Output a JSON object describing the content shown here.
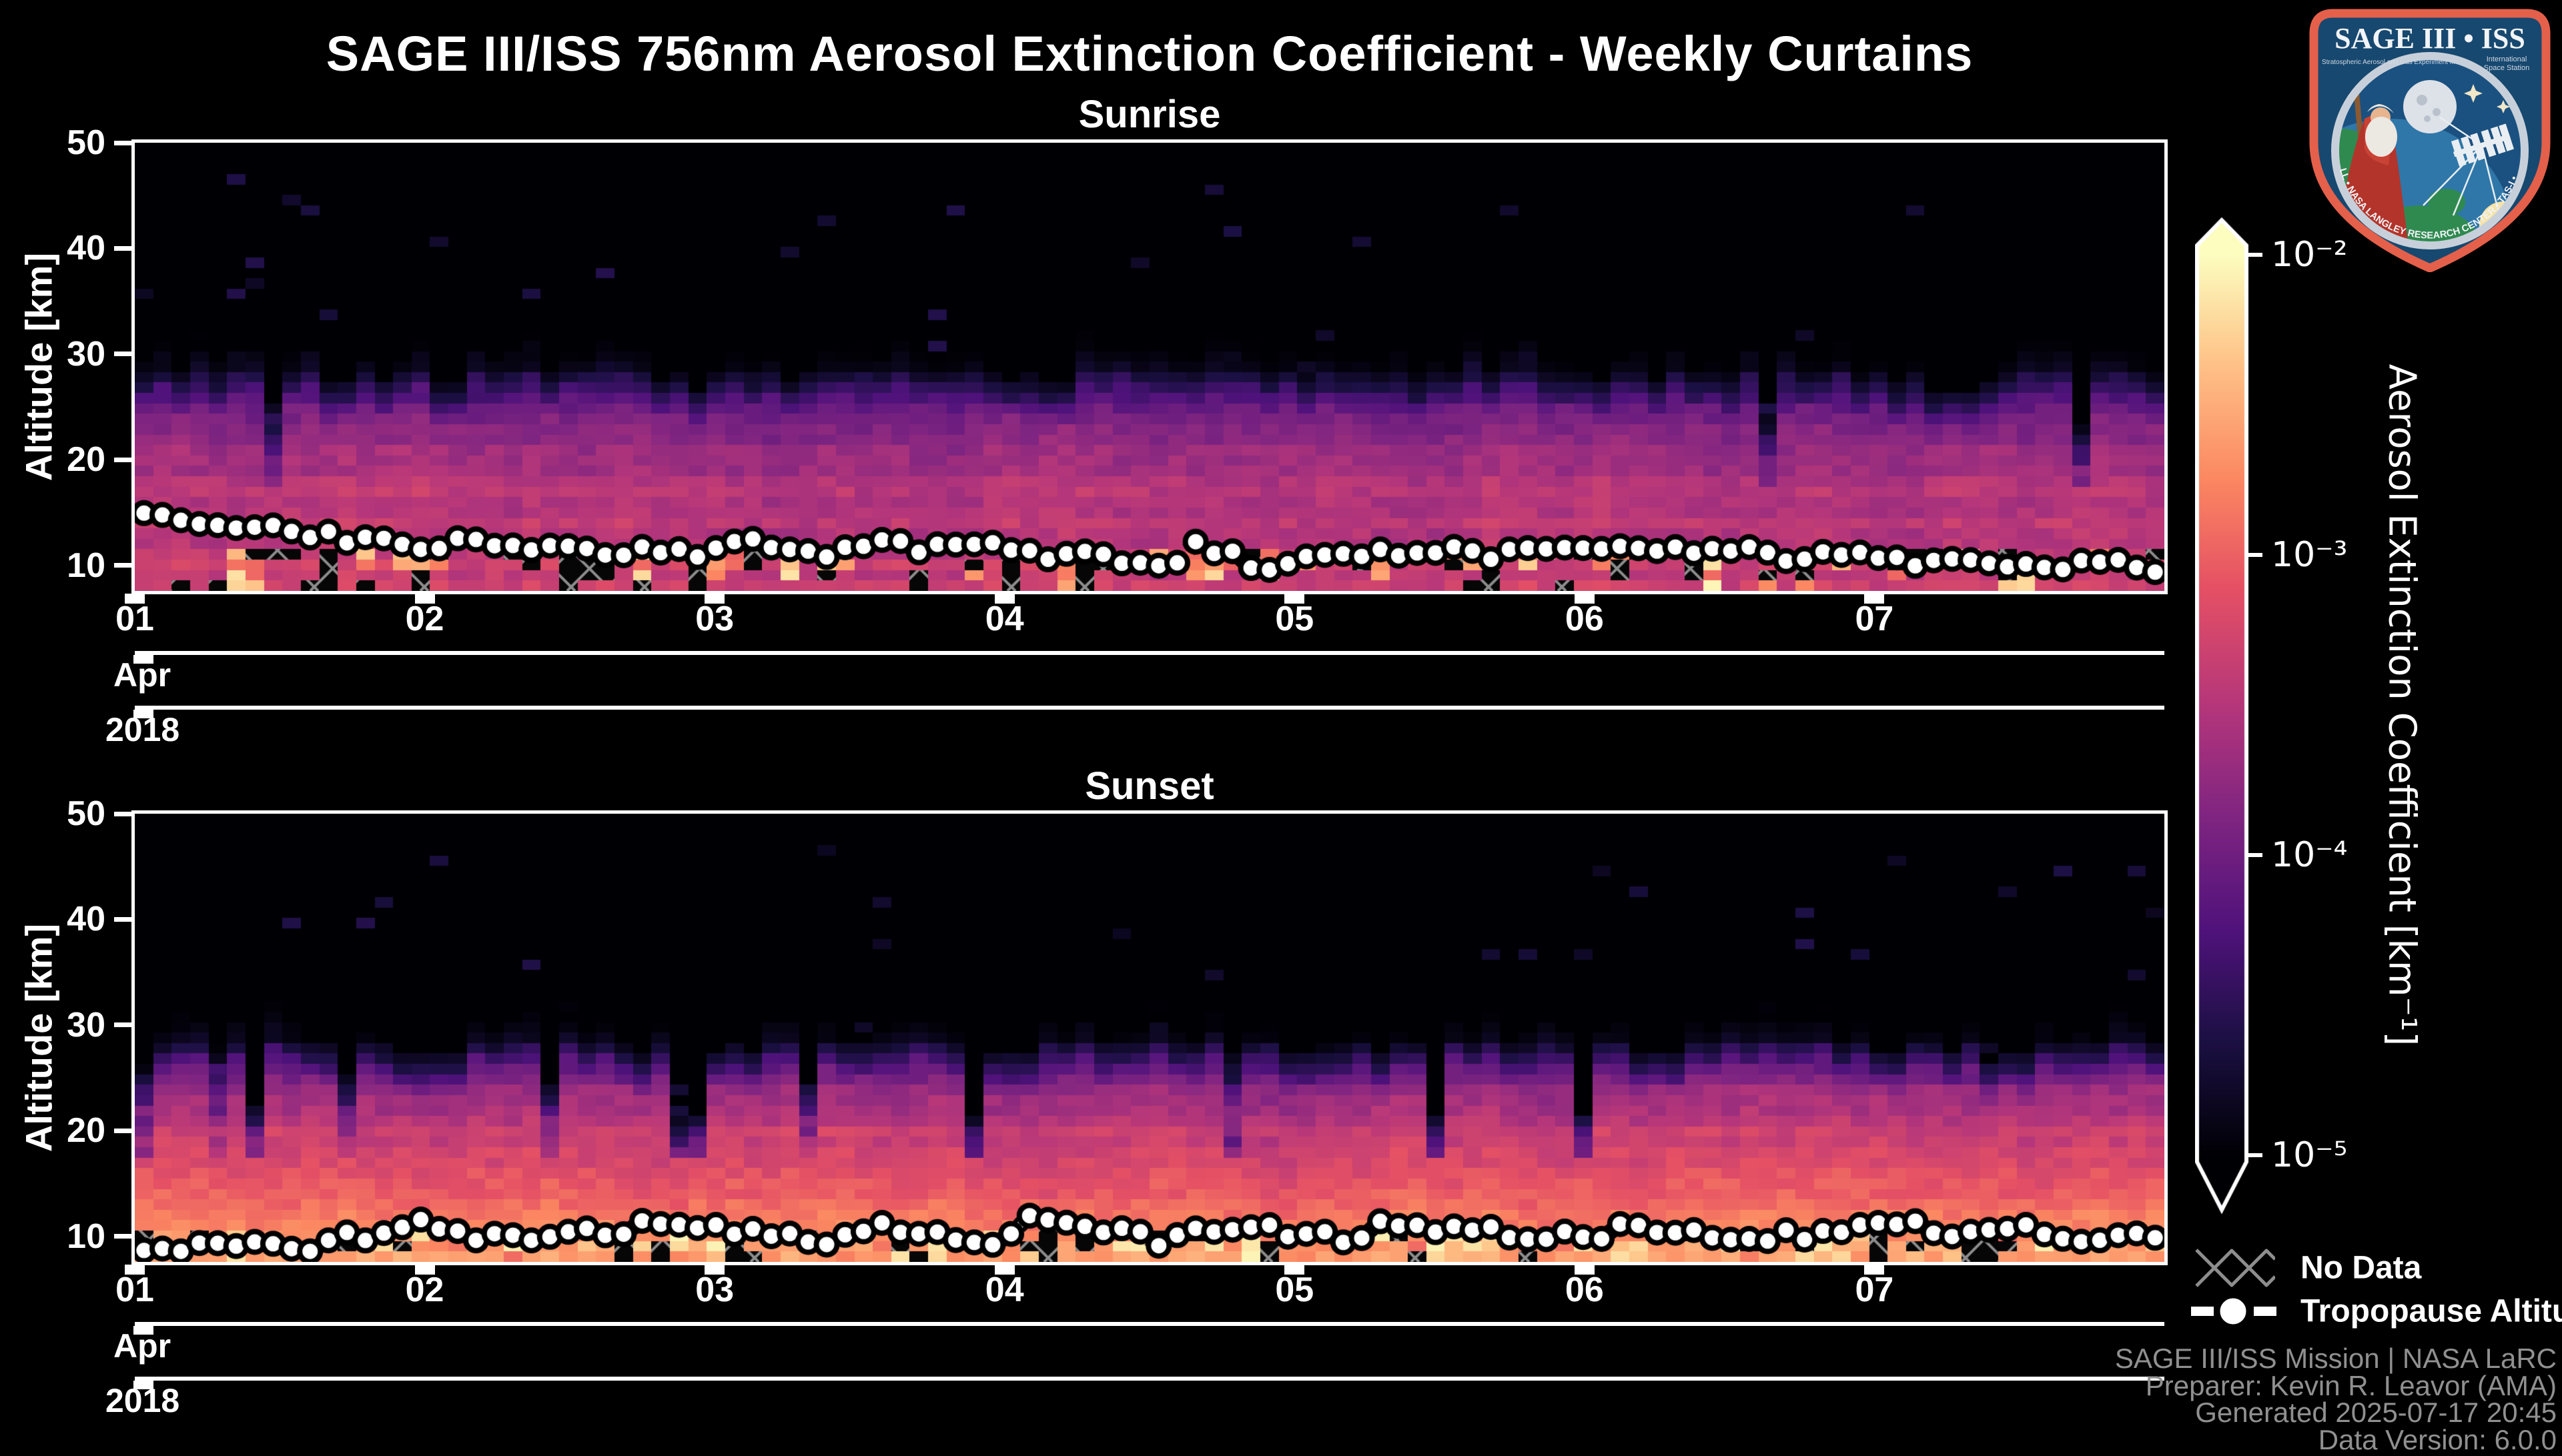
{
  "header": {
    "title": "SAGE III/ISS 756nm Aerosol Extinction Coefficient - Weekly Curtains"
  },
  "y_axis": {
    "label": "Altitude [km]",
    "ticks": [
      50,
      40,
      30,
      20,
      10
    ],
    "range_km": [
      7.6,
      50
    ]
  },
  "x_axis": {
    "tick_labels": [
      "01",
      "02",
      "03",
      "04",
      "05",
      "06",
      "07"
    ],
    "month_label": "Apr",
    "year_label": "2018"
  },
  "colorbar": {
    "label": "Aerosol Extinction Coefficient [km⁻¹]",
    "scale": "log",
    "colormap": "magma",
    "ticks": [
      {
        "label": "10⁻²",
        "value": 0.01
      },
      {
        "label": "10⁻³",
        "value": 0.001
      },
      {
        "label": "10⁻⁴",
        "value": 0.0001
      },
      {
        "label": "10⁻⁵",
        "value": 1e-05
      }
    ]
  },
  "legend": {
    "items": [
      {
        "symbol": "no-data-hatch",
        "label": "No Data"
      },
      {
        "symbol": "tropopause-marker",
        "label": "Tropopause Altitude"
      }
    ]
  },
  "footer": {
    "lines": [
      "SAGE III/ISS Mission | NASA LaRC",
      "Preparer: Kevin R. Leavor (AMA)",
      "Generated 2025-07-17 20:45",
      "Data Version: 6.0.0"
    ]
  },
  "logo": {
    "title": "SAGE III • ISS",
    "subtitle_left": "Stratospheric Aerosol and Gas Experiment III",
    "subtitle_right_line1": "International",
    "subtitle_right_line2": "Space Station",
    "ring_text": "BALL • NASA LANGLEY RESEARCH CENTER • TAS-I • ESA",
    "colors": {
      "border": "#e4604a",
      "field": "#17486f",
      "ring": "#c7d0da"
    }
  },
  "chart_data": [
    {
      "type": "heatmap",
      "name": "Sunrise",
      "x_unit": "weeks of April 2018 (ticks 01-07, one curtain column per profile)",
      "n_profile_columns": 110,
      "altitude_range_km": [
        7.6,
        50
      ],
      "value_quantity": "log10 aerosol extinction coefficient [1/km]",
      "value_range": [
        1e-05,
        0.01
      ],
      "mean_profile_log10_vs_km": [
        [
          7.6,
          -3.35
        ],
        [
          10,
          -3.35
        ],
        [
          12,
          -3.5
        ],
        [
          14,
          -3.45
        ],
        [
          16,
          -3.5
        ],
        [
          18,
          -3.55
        ],
        [
          20,
          -3.62
        ],
        [
          22,
          -3.78
        ],
        [
          24,
          -3.98
        ],
        [
          26,
          -4.22
        ],
        [
          27.5,
          -4.48
        ],
        [
          29,
          -4.75
        ],
        [
          30.5,
          -4.95
        ],
        [
          32,
          -5.0
        ],
        [
          50,
          -5.0
        ]
      ],
      "tropopause_km_weekly": [
        15.3,
        11.6,
        11.2,
        11.8,
        10.6,
        11.0,
        11.6,
        10.4,
        10.2
      ],
      "render": {
        "top_boundary_km_base": 29.6,
        "top_boundary_jitter_km": 2.4,
        "bright_zone_top_km": 12.0,
        "p_no_data": 0.27,
        "p_bright": 0.22,
        "p_dark_streak": 0.02,
        "seed": 11
      }
    },
    {
      "type": "heatmap",
      "name": "Sunset",
      "x_unit": "weeks of April 2018 (ticks 01-07, one curtain column per profile)",
      "n_profile_columns": 110,
      "altitude_range_km": [
        7.6,
        50
      ],
      "value_quantity": "log10 aerosol extinction coefficient [1/km]",
      "value_range": [
        1e-05,
        0.01
      ],
      "mean_profile_log10_vs_km": [
        [
          7.6,
          -2.5
        ],
        [
          10,
          -2.62
        ],
        [
          12,
          -2.82
        ],
        [
          14,
          -2.97
        ],
        [
          16,
          -3.1
        ],
        [
          18,
          -3.22
        ],
        [
          20,
          -3.36
        ],
        [
          22,
          -3.52
        ],
        [
          24,
          -3.72
        ],
        [
          26,
          -3.98
        ],
        [
          27.5,
          -4.35
        ],
        [
          29,
          -4.72
        ],
        [
          30.5,
          -4.95
        ],
        [
          32,
          -5.0
        ],
        [
          50,
          -5.0
        ]
      ],
      "tropopause_km_weekly": [
        9.4,
        10.0,
        10.6,
        9.6,
        10.0,
        10.6,
        9.9,
        10.5,
        10.2
      ],
      "render": {
        "top_boundary_km_base": 29.3,
        "top_boundary_jitter_km": 2.2,
        "bright_zone_top_km": 10.8,
        "p_no_data": 0.22,
        "p_bright": 0.5,
        "p_dark_streak": 0.07,
        "seed": 22
      }
    }
  ],
  "colormap_stops": [
    [
      0.0,
      0,
      0,
      4
    ],
    [
      0.13,
      28,
      16,
      68
    ],
    [
      0.25,
      79,
      18,
      123
    ],
    [
      0.38,
      129,
      37,
      129
    ],
    [
      0.5,
      181,
      54,
      122
    ],
    [
      0.63,
      229,
      80,
      100
    ],
    [
      0.75,
      251,
      135,
      97
    ],
    [
      0.88,
      254,
      194,
      135
    ],
    [
      1.0,
      252,
      253,
      191
    ]
  ]
}
